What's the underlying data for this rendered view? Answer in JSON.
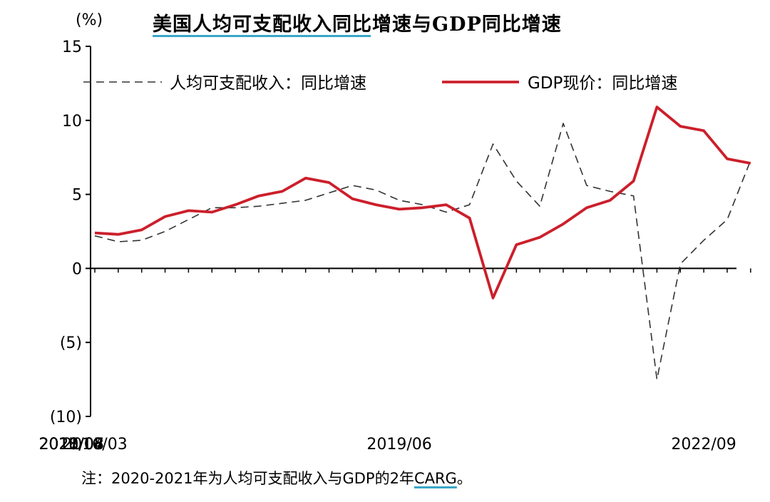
{
  "chart_data": {
    "type": "line",
    "title": "美国人均可支配收入同比增速与GDP同比增速",
    "unit": "(%)",
    "ylim": [
      -10,
      15
    ],
    "y_ticks": [
      15,
      10,
      5,
      0,
      -5,
      -10
    ],
    "y_tick_labels": [
      "15",
      "10",
      "5",
      "0",
      "(5)",
      "(10)"
    ],
    "x_tick_labels": [
      "2016/03",
      "2017/04",
      "2018/05",
      "2019/06",
      "2020/07",
      "2021/08",
      "2022/09"
    ],
    "x": [
      "2016/03",
      "2016/06",
      "2016/09",
      "2016/12",
      "2017/03",
      "2017/06",
      "2017/09",
      "2017/12",
      "2018/03",
      "2018/06",
      "2018/09",
      "2018/12",
      "2019/03",
      "2019/06",
      "2019/09",
      "2019/12",
      "2020/03",
      "2020/06",
      "2020/09",
      "2020/12",
      "2021/03",
      "2021/06",
      "2021/09",
      "2021/12",
      "2022/03",
      "2022/06",
      "2022/09",
      "2022/12",
      "2023/03"
    ],
    "series": [
      {
        "name": "人均可支配收入：同比增速",
        "style": "dashed",
        "color": "#333333",
        "values": [
          2.2,
          1.8,
          1.9,
          2.5,
          3.3,
          4.1,
          4.1,
          4.2,
          4.4,
          4.6,
          5.1,
          5.6,
          5.3,
          4.6,
          4.3,
          3.8,
          4.3,
          8.4,
          5.9,
          4.2,
          9.8,
          5.6,
          5.2,
          4.9,
          -7.5,
          0.3,
          1.9,
          3.3,
          7.3
        ]
      },
      {
        "name": "GDP现价：同比增速",
        "style": "solid",
        "color": "#cc1f2b",
        "values": [
          2.4,
          2.3,
          2.6,
          3.5,
          3.9,
          3.8,
          4.3,
          4.9,
          5.2,
          6.1,
          5.8,
          4.7,
          4.3,
          4.0,
          4.1,
          4.3,
          3.4,
          -2.0,
          1.6,
          2.1,
          3.0,
          4.1,
          4.6,
          5.9,
          10.9,
          9.6,
          9.3,
          7.4,
          7.1
        ]
      }
    ],
    "grid": false,
    "legend_position": "top"
  },
  "note": {
    "text": "注：2020-2021年为人均可支配收入与GDP的2年",
    "carg": "CARG",
    "end": "。"
  }
}
